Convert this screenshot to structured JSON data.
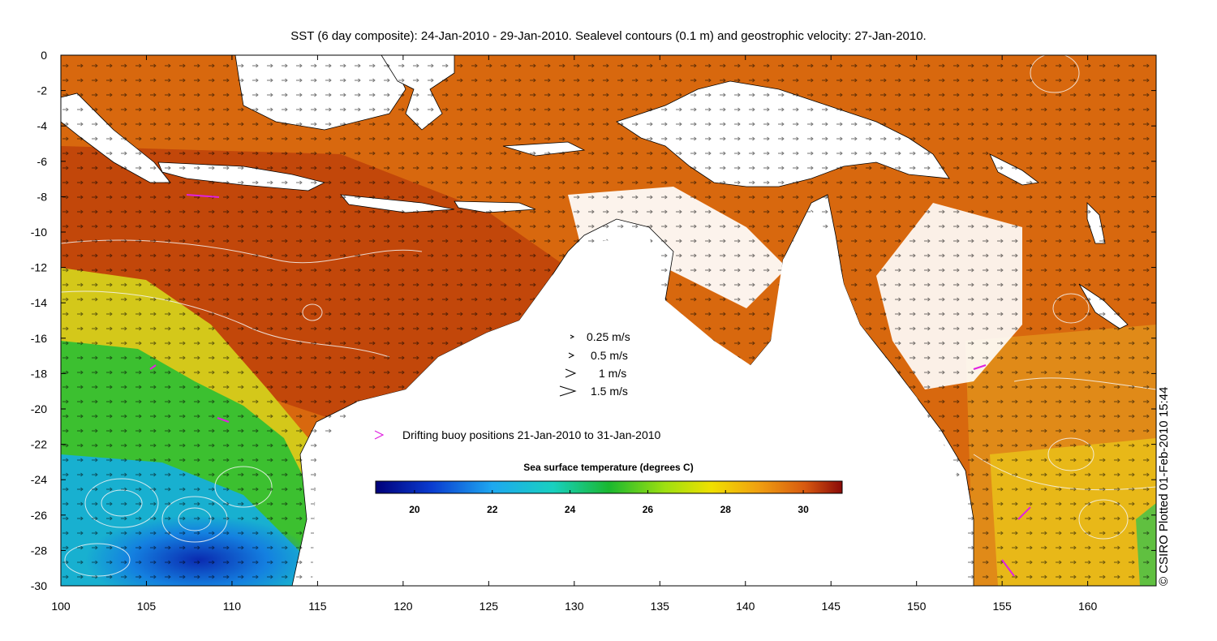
{
  "title": "SST (6 day composite): 24-Jan-2010 - 29-Jan-2010. Sealevel contours (0.1 m) and geostrophic velocity: 27-Jan-2010.",
  "credit": "© CSIRO Plotted 01-Feb-2010 15:44",
  "axes": {
    "x_ticks": [
      "100",
      "105",
      "110",
      "115",
      "120",
      "125",
      "130",
      "135",
      "140",
      "145",
      "150",
      "155",
      "160"
    ],
    "y_ticks": [
      "0",
      "-2",
      "-4",
      "-6",
      "-8",
      "-10",
      "-12",
      "-14",
      "-16",
      "-18",
      "-20",
      "-22",
      "-24",
      "-26",
      "-28",
      "-30"
    ],
    "lon_range": [
      100,
      164
    ],
    "lat_range": [
      -30,
      0
    ]
  },
  "velocity_legend": [
    {
      "label": "0.25 m/s",
      "speed": 0.25
    },
    {
      "label": "0.5 m/s",
      "speed": 0.5
    },
    {
      "label": "1 m/s",
      "speed": 1
    },
    {
      "label": "1.5 m/s",
      "speed": 1.5
    }
  ],
  "buoy_legend": {
    "label": "Drifting buoy positions 21-Jan-2010 to 31-Jan-2010",
    "symbol": ">",
    "color": "#e020e0"
  },
  "colorbar": {
    "title": "Sea surface temperature (degrees C)",
    "ticks": [
      "20",
      "22",
      "24",
      "26",
      "28",
      "30"
    ],
    "tick_values": [
      20,
      22,
      24,
      26,
      28,
      30
    ],
    "range": [
      19,
      31
    ]
  },
  "colors": {
    "land": "#ffffff",
    "warm": "#d86a10",
    "hot": "#a82208",
    "cool": "#20c020",
    "cold": "#0a40c8"
  }
}
